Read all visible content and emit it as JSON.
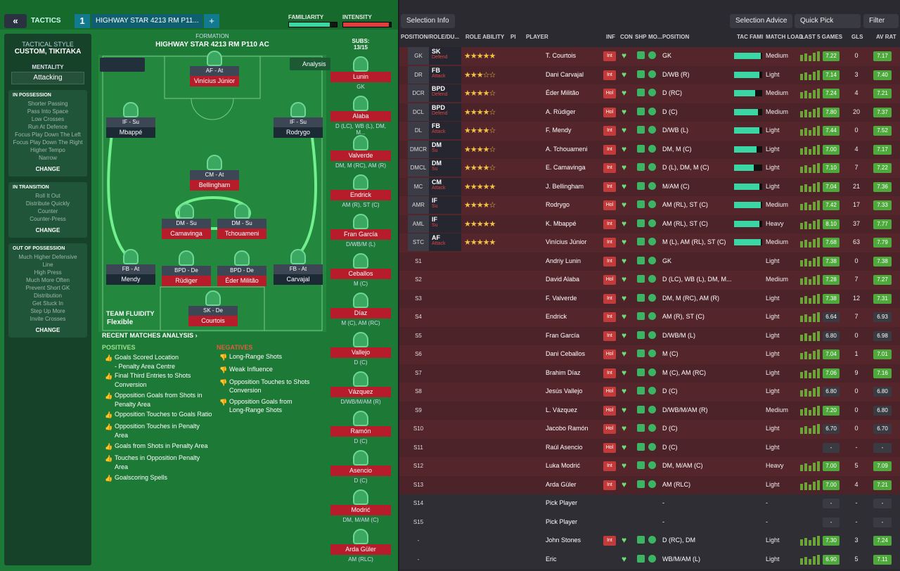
{
  "topbar": {
    "back_icon": "«",
    "tactics_label": "TACTICS",
    "slot_number": "1",
    "tactic_name": "HIGHWAY STAR 4213 RM P11...",
    "plus_icon": "+",
    "familiarity_label": "FAMILIARITY",
    "intensity_label": "INTENSITY",
    "familiarity": 0.85,
    "intensity": 0.95
  },
  "tactical_style": {
    "label": "TACTICAL STYLE",
    "value": "CUSTOM, TIKITAKA",
    "mentality_label": "MENTALITY",
    "mentality_value": "Attacking",
    "in_possession": {
      "title": "IN POSSESSION",
      "items": [
        "Shorter Passing",
        "Pass Into Space",
        "Low Crosses",
        "Run At Defence",
        "Focus Play Down The Left",
        "Focus Play Down The Right",
        "Higher Tempo",
        "Narrow"
      ],
      "change": "CHANGE"
    },
    "in_transition": {
      "title": "IN TRANSITION",
      "items": [
        "Roll It Out",
        "Distribute Quickly",
        "Counter",
        "Counter-Press"
      ],
      "change": "CHANGE"
    },
    "out_of_possession": {
      "title": "OUT OF POSSESSION",
      "items": [
        "Much Higher Defensive",
        "Line",
        "High Press",
        "Much More Often",
        "Prevent Short GK",
        "Distribution",
        "Get Stuck In",
        "Step Up More",
        "Invite Crosses"
      ],
      "change": "CHANGE"
    }
  },
  "formation": {
    "label": "FORMATION",
    "name": "HIGHWAY STAR 4213 RM P110 AC",
    "analysis": "Analysis",
    "team_fluidity_label": "TEAM FLUIDITY",
    "team_fluidity_value": "Flexible",
    "players": [
      {
        "role": "AF - At",
        "name": "Vinícius Júnior"
      },
      {
        "role": "IF - Su",
        "name": "Mbappé"
      },
      {
        "role": "IF - Su",
        "name": "Rodrygo"
      },
      {
        "role": "CM - At",
        "name": "Bellingham"
      },
      {
        "role": "DM - Su",
        "name": "Camavinga"
      },
      {
        "role": "DM - Su",
        "name": "Tchouameni"
      },
      {
        "role": "FB - At",
        "name": "Mendy"
      },
      {
        "role": "BPD - De",
        "name": "Rüdiger"
      },
      {
        "role": "BPD - De",
        "name": "Éder Militão"
      },
      {
        "role": "FB - At",
        "name": "Carvajal"
      },
      {
        "role": "SK - De",
        "name": "Courtois"
      }
    ]
  },
  "recent": {
    "title": "RECENT MATCHES ANALYSIS ›",
    "positives_label": "POSITIVES",
    "negatives_label": "NEGATIVES",
    "positives": [
      "Goals Scored Location",
      "- Penalty Area Centre",
      "Final Third Entries to Shots",
      "Conversion",
      "Opposition Goals from Shots in",
      "Penalty Area",
      "Opposition Touches to Goals Ratio",
      "Opposition Touches in Penalty",
      "Area",
      "Goals from Shots in Penalty Area",
      "Touches in Opposition Penalty",
      "Area",
      "Goalscoring Spells"
    ],
    "negatives": [
      "Long-Range Shots",
      "Weak Influence",
      "Opposition Touches to Shots",
      "Conversion",
      "Opposition Goals from",
      "Long-Range Shots"
    ]
  },
  "subs": {
    "label": "SUBS:",
    "count": "13/15",
    "items": [
      {
        "name": "Lunin",
        "pos": "GK"
      },
      {
        "name": "Alaba",
        "pos": "D (LC), WB (L), DM, M..."
      },
      {
        "name": "Valverde",
        "pos": "DM, M (RC), AM (R)"
      },
      {
        "name": "Endrick",
        "pos": "AM (R), ST (C)"
      },
      {
        "name": "Fran García",
        "pos": "D/WB/M (L)"
      },
      {
        "name": "Ceballos",
        "pos": "M (C)"
      },
      {
        "name": "Díaz",
        "pos": "M (C), AM (RC)"
      },
      {
        "name": "Vallejo",
        "pos": "D (C)"
      },
      {
        "name": "Vázquez",
        "pos": "D/WB/M/AM (R)"
      },
      {
        "name": "Ramón",
        "pos": "D (C)"
      },
      {
        "name": "Asencio",
        "pos": "D (C)"
      },
      {
        "name": "Modrić",
        "pos": "DM, M/AM (C)"
      },
      {
        "name": "Arda Güler",
        "pos": "AM (RLC)"
      }
    ]
  },
  "right": {
    "selection_info": "Selection Info",
    "selection_advice": "Selection Advice",
    "quick_pick": "Quick Pick",
    "filter": "Filter",
    "headers": [
      "POSITION/ROLE/DU...",
      "ROLE ABILITY",
      "PI",
      "PLAYER",
      "INF",
      "CON",
      "SHP",
      "MO...",
      "POSITION",
      "TAC FAMI",
      "MATCH LOAD",
      "LAST 5 GAMES",
      "GLS",
      "AV RAT"
    ],
    "rows": [
      {
        "pos": "GK",
        "role": "SK",
        "duty": "Defend",
        "stars": "★★★★★",
        "name": "T. Courtois",
        "inf": "Int",
        "position": "GK",
        "load": "Medium",
        "rat": "7.22",
        "gls": "0",
        "avr": "7.17",
        "tac": 0.95
      },
      {
        "pos": "DR",
        "role": "FB",
        "duty": "Attack",
        "stars": "★★★☆☆",
        "name": "Dani Carvajal",
        "inf": "Int",
        "position": "D/WB (R)",
        "load": "Light",
        "rat": "7.14",
        "gls": "3",
        "avr": "7.40",
        "tac": 0.9
      },
      {
        "pos": "DCR",
        "role": "BPD",
        "duty": "Defend",
        "stars": "★★★★☆",
        "name": "Éder Militão",
        "inf": "Hol",
        "position": "D (RC)",
        "load": "Medium",
        "rat": "7.24",
        "gls": "4",
        "avr": "7.21",
        "tac": 0.75
      },
      {
        "pos": "DCL",
        "role": "BPD",
        "duty": "Defend",
        "stars": "★★★★☆",
        "name": "A. Rüdiger",
        "inf": "Hol",
        "position": "D (C)",
        "load": "Medium",
        "rat": "7.80",
        "gls": "20",
        "avr": "7.37",
        "tac": 0.85
      },
      {
        "pos": "DL",
        "role": "FB",
        "duty": "Attack",
        "stars": "★★★★☆",
        "name": "F. Mendy",
        "inf": "Int",
        "position": "D/WB (L)",
        "load": "Light",
        "rat": "7.44",
        "gls": "0",
        "avr": "7.52",
        "tac": 0.9
      },
      {
        "pos": "DMCR",
        "role": "DM",
        "duty": "Su",
        "stars": "★★★★☆",
        "name": "A. Tchouameni",
        "inf": "Int",
        "position": "DM, M (C)",
        "load": "Light",
        "rat": "7.00",
        "gls": "4",
        "avr": "7.17",
        "tac": 0.8
      },
      {
        "pos": "DMCL",
        "role": "DM",
        "duty": "Su",
        "stars": "★★★★☆",
        "name": "E. Camavinga",
        "inf": "Int",
        "position": "D (L), DM, M (C)",
        "load": "Light",
        "rat": "7.10",
        "gls": "7",
        "avr": "7.22",
        "tac": 0.7
      },
      {
        "pos": "MC",
        "role": "CM",
        "duty": "Attack",
        "stars": "★★★★★",
        "name": "J. Bellingham",
        "inf": "Int",
        "position": "M/AM (C)",
        "load": "Light",
        "rat": "7.04",
        "gls": "21",
        "avr": "7.36",
        "tac": 0.9
      },
      {
        "pos": "AMR",
        "role": "IF",
        "duty": "Su",
        "stars": "★★★★☆",
        "name": "Rodrygo",
        "inf": "Hol",
        "position": "AM (RL), ST (C)",
        "load": "Medium",
        "rat": "7.42",
        "gls": "17",
        "avr": "7.33",
        "tac": 0.95
      },
      {
        "pos": "AML",
        "role": "IF",
        "duty": "Su",
        "stars": "★★★★★",
        "name": "K. Mbappé",
        "inf": "Int",
        "position": "AM (RL), ST (C)",
        "load": "Heavy",
        "rat": "8.10",
        "gls": "37",
        "avr": "7.77",
        "tac": 0.9
      },
      {
        "pos": "STC",
        "role": "AF",
        "duty": "Attack",
        "stars": "★★★★★",
        "name": "Vinícius Júnior",
        "inf": "Int",
        "position": "M (L), AM (RL), ST (C)",
        "load": "Medium",
        "rat": "7.68",
        "gls": "63",
        "avr": "7.79",
        "tac": 0.95
      },
      {
        "pos": "S1",
        "name": "Andriy Lunin",
        "inf": "Int",
        "position": "GK",
        "load": "Light",
        "rat": "7.38",
        "gls": "0",
        "avr": "7.38"
      },
      {
        "pos": "S2",
        "name": "David Alaba",
        "inf": "Hol",
        "position": "D (LC), WB (L), DM, M...",
        "load": "Medium",
        "rat": "7.28",
        "gls": "7",
        "avr": "7.27"
      },
      {
        "pos": "S3",
        "name": "F. Valverde",
        "inf": "Int",
        "position": "DM, M (RC), AM (R)",
        "load": "Light",
        "rat": "7.38",
        "gls": "12",
        "avr": "7.31"
      },
      {
        "pos": "S4",
        "name": "Endrick",
        "inf": "Int",
        "position": "AM (R), ST (C)",
        "load": "Light",
        "rat": "6.64",
        "gls": "7",
        "avr": "6.93"
      },
      {
        "pos": "S5",
        "name": "Fran García",
        "inf": "Int",
        "position": "D/WB/M (L)",
        "load": "Light",
        "rat": "6.80",
        "gls": "0",
        "avr": "6.98"
      },
      {
        "pos": "S6",
        "name": "Dani Ceballos",
        "inf": "Hol",
        "position": "M (C)",
        "load": "Light",
        "rat": "7.04",
        "gls": "1",
        "avr": "7.01"
      },
      {
        "pos": "S7",
        "name": "Brahim Díaz",
        "inf": "Int",
        "position": "M (C), AM (RC)",
        "load": "Light",
        "rat": "7.06",
        "gls": "9",
        "avr": "7.16"
      },
      {
        "pos": "S8",
        "name": "Jesús Vallejo",
        "inf": "Hol",
        "position": "D (C)",
        "load": "Light",
        "rat": "6.80",
        "gls": "0",
        "avr": "6.80"
      },
      {
        "pos": "S9",
        "name": "L. Vázquez",
        "inf": "Hol",
        "position": "D/WB/M/AM (R)",
        "load": "Medium",
        "rat": "7.20",
        "gls": "0",
        "avr": "6.80"
      },
      {
        "pos": "S10",
        "name": "Jacobo Ramón",
        "inf": "Hol",
        "position": "D (C)",
        "load": "Light",
        "rat": "6.70",
        "gls": "0",
        "avr": "6.70"
      },
      {
        "pos": "S11",
        "name": "Raúl Asencio",
        "inf": "Hol",
        "position": "D (C)",
        "load": "Light",
        "rat": "-",
        "gls": "-",
        "avr": "-"
      },
      {
        "pos": "S12",
        "name": "Luka Modrić",
        "inf": "Int",
        "position": "DM, M/AM (C)",
        "load": "Heavy",
        "rat": "7.00",
        "gls": "5",
        "avr": "7.09"
      },
      {
        "pos": "S13",
        "name": "Arda Güler",
        "inf": "Int",
        "position": "AM (RLC)",
        "load": "Light",
        "rat": "7.00",
        "gls": "4",
        "avr": "7.21"
      },
      {
        "pos": "S14",
        "name": "Pick Player",
        "inf": "",
        "position": "-",
        "load": "-",
        "rat": "-",
        "gls": "-",
        "avr": "-"
      },
      {
        "pos": "S15",
        "name": "Pick Player",
        "inf": "",
        "position": "-",
        "load": "-",
        "rat": "-",
        "gls": "-",
        "avr": "-"
      },
      {
        "pos": "-",
        "name": "John Stones",
        "inf": "Int",
        "position": "D (RC), DM",
        "load": "Light",
        "rat": "7.30",
        "gls": "3",
        "avr": "7.24"
      },
      {
        "pos": "-",
        "name": "Eric",
        "inf": "",
        "position": "WB/M/AM (L)",
        "load": "Light",
        "rat": "6.90",
        "gls": "5",
        "avr": "7.11"
      }
    ]
  }
}
